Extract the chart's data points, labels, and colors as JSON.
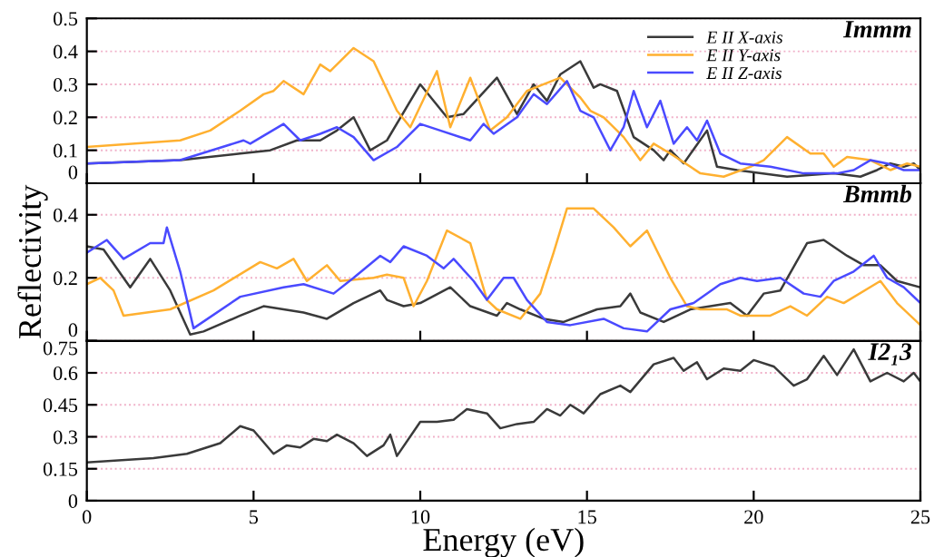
{
  "chart_data": [
    {
      "type": "line",
      "annotations": [
        "Immm"
      ],
      "xlim": [
        0,
        25
      ],
      "xticks": [
        0,
        5,
        10,
        15,
        20,
        25
      ],
      "ylim": [
        0,
        0.5
      ],
      "yticks": [
        0,
        0.1,
        0.2,
        0.3,
        0.4,
        0.5
      ],
      "tick_labels": "y",
      "grid": "y",
      "legend": "top right",
      "series": [
        {
          "name": "E II X-axis",
          "color": "#3a3a3a",
          "x": [
            0,
            2.8,
            4.6,
            5.5,
            6.3,
            7.0,
            7.5,
            8.0,
            8.5,
            9.0,
            10.0,
            10.8,
            11.3,
            12.3,
            12.9,
            13.4,
            13.8,
            14.2,
            14.8,
            15.2,
            15.4,
            15.9,
            16.4,
            17.0,
            17.3,
            17.5,
            17.9,
            18.6,
            18.9,
            19.5,
            21.0,
            22.4,
            23.2,
            23.7,
            24.1,
            24.5,
            24.8,
            25
          ],
          "values": [
            0.06,
            0.07,
            0.09,
            0.1,
            0.13,
            0.13,
            0.16,
            0.2,
            0.1,
            0.13,
            0.3,
            0.2,
            0.21,
            0.32,
            0.21,
            0.3,
            0.25,
            0.33,
            0.37,
            0.29,
            0.3,
            0.28,
            0.14,
            0.1,
            0.07,
            0.1,
            0.06,
            0.16,
            0.05,
            0.04,
            0.02,
            0.03,
            0.02,
            0.04,
            0.06,
            0.05,
            0.06,
            0.04
          ]
        },
        {
          "name": "E II Y-axis",
          "color": "#ffb030",
          "x": [
            0,
            2.8,
            3.7,
            4.6,
            5.3,
            5.6,
            5.9,
            6.5,
            7.0,
            7.3,
            8.0,
            8.6,
            9.3,
            9.7,
            10.5,
            10.9,
            11.5,
            12.1,
            12.6,
            13.2,
            13.7,
            14.2,
            14.8,
            15.1,
            15.5,
            16.1,
            16.6,
            17.0,
            17.5,
            18.4,
            19.1,
            19.9,
            20.3,
            21.0,
            21.7,
            22.1,
            22.4,
            22.8,
            23.5,
            24.1,
            24.6,
            25
          ],
          "values": [
            0.11,
            0.13,
            0.16,
            0.22,
            0.27,
            0.28,
            0.31,
            0.27,
            0.36,
            0.34,
            0.41,
            0.37,
            0.22,
            0.17,
            0.34,
            0.17,
            0.32,
            0.16,
            0.2,
            0.28,
            0.3,
            0.32,
            0.26,
            0.22,
            0.2,
            0.14,
            0.07,
            0.12,
            0.09,
            0.03,
            0.02,
            0.05,
            0.07,
            0.14,
            0.09,
            0.09,
            0.05,
            0.08,
            0.07,
            0.04,
            0.06,
            0.05
          ]
        },
        {
          "name": "E II Z-axis",
          "color": "#4a4aff",
          "x": [
            0,
            2.8,
            4.7,
            4.9,
            5.9,
            6.4,
            7.0,
            7.5,
            8.0,
            8.6,
            9.3,
            10.0,
            10.6,
            11.5,
            11.9,
            12.2,
            12.9,
            13.4,
            13.8,
            14.4,
            14.8,
            15.2,
            15.7,
            16.1,
            16.4,
            16.8,
            17.2,
            17.6,
            18.0,
            18.3,
            18.6,
            19.0,
            19.6,
            20.5,
            21.5,
            22.5,
            23.0,
            23.5,
            24.0,
            24.5,
            25
          ],
          "values": [
            0.06,
            0.07,
            0.13,
            0.12,
            0.18,
            0.13,
            0.15,
            0.17,
            0.14,
            0.07,
            0.11,
            0.18,
            0.16,
            0.13,
            0.18,
            0.15,
            0.2,
            0.27,
            0.24,
            0.31,
            0.22,
            0.2,
            0.1,
            0.17,
            0.28,
            0.17,
            0.25,
            0.12,
            0.17,
            0.13,
            0.19,
            0.09,
            0.06,
            0.05,
            0.03,
            0.03,
            0.04,
            0.07,
            0.06,
            0.04,
            0.04
          ]
        }
      ]
    },
    {
      "type": "line",
      "annotations": [
        "Bmmb"
      ],
      "ylabel": "Reflectivity",
      "xlim": [
        0,
        25
      ],
      "xticks": [
        0,
        5,
        10,
        15,
        20,
        25
      ],
      "ylim": [
        0,
        0.5
      ],
      "yticks": [
        0,
        0.2,
        0.4
      ],
      "tick_labels": "y",
      "grid": "y",
      "series": [
        {
          "color": "#3a3a3a",
          "x": [
            0,
            0.5,
            1.3,
            1.9,
            2.5,
            3.1,
            3.5,
            4.6,
            5.3,
            6.5,
            7.2,
            8.0,
            8.8,
            9.0,
            9.5,
            10.0,
            10.9,
            11.5,
            12.3,
            12.6,
            13.0,
            13.7,
            14.3,
            15.3,
            16.0,
            16.3,
            16.6,
            17.3,
            18.1,
            19.3,
            19.8,
            20.3,
            20.8,
            21.6,
            22.1,
            22.8,
            23.3,
            23.8,
            24.3,
            25
          ],
          "values": [
            0.3,
            0.29,
            0.17,
            0.26,
            0.16,
            0.02,
            0.03,
            0.08,
            0.11,
            0.09,
            0.07,
            0.12,
            0.16,
            0.13,
            0.11,
            0.12,
            0.17,
            0.11,
            0.08,
            0.12,
            0.1,
            0.07,
            0.06,
            0.1,
            0.11,
            0.15,
            0.09,
            0.06,
            0.1,
            0.12,
            0.08,
            0.15,
            0.16,
            0.31,
            0.32,
            0.27,
            0.24,
            0.24,
            0.19,
            0.17
          ]
        },
        {
          "color": "#ffb030",
          "x": [
            0,
            0.4,
            0.8,
            1.1,
            2.5,
            3.8,
            5.2,
            5.7,
            6.2,
            6.6,
            7.2,
            7.6,
            8.6,
            9.0,
            9.5,
            9.8,
            10.2,
            10.8,
            11.5,
            12.0,
            12.3,
            13.0,
            13.6,
            14.0,
            14.4,
            15.2,
            15.8,
            16.3,
            16.8,
            17.5,
            18.0,
            18.4,
            19.2,
            19.6,
            20.5,
            21.1,
            21.6,
            22.2,
            22.7,
            23.8,
            24.3,
            25
          ],
          "values": [
            0.18,
            0.2,
            0.16,
            0.08,
            0.1,
            0.16,
            0.25,
            0.23,
            0.26,
            0.19,
            0.24,
            0.19,
            0.2,
            0.21,
            0.2,
            0.11,
            0.19,
            0.35,
            0.31,
            0.13,
            0.1,
            0.07,
            0.15,
            0.28,
            0.42,
            0.42,
            0.36,
            0.3,
            0.35,
            0.2,
            0.11,
            0.1,
            0.1,
            0.08,
            0.08,
            0.11,
            0.08,
            0.14,
            0.12,
            0.19,
            0.12,
            0.05
          ]
        },
        {
          "color": "#4a4aff",
          "x": [
            0,
            0.6,
            1.1,
            1.9,
            2.3,
            2.4,
            2.8,
            3.2,
            4.6,
            5.9,
            6.5,
            7.4,
            8.0,
            8.8,
            9.1,
            9.5,
            10.2,
            10.7,
            11.0,
            11.6,
            12.0,
            12.5,
            12.8,
            13.2,
            13.8,
            14.5,
            15.5,
            16.1,
            16.8,
            17.5,
            18.2,
            19.0,
            19.6,
            20.1,
            20.8,
            21.5,
            22.0,
            22.4,
            23.0,
            23.6,
            24.0,
            24.5,
            25
          ],
          "values": [
            0.28,
            0.32,
            0.26,
            0.31,
            0.31,
            0.36,
            0.22,
            0.04,
            0.14,
            0.17,
            0.18,
            0.15,
            0.2,
            0.27,
            0.25,
            0.3,
            0.27,
            0.23,
            0.26,
            0.19,
            0.13,
            0.2,
            0.2,
            0.13,
            0.06,
            0.05,
            0.07,
            0.04,
            0.03,
            0.1,
            0.12,
            0.18,
            0.2,
            0.19,
            0.2,
            0.15,
            0.14,
            0.19,
            0.22,
            0.27,
            0.2,
            0.17,
            0.12
          ]
        }
      ]
    },
    {
      "type": "line",
      "annotations": [
        "I2₁3"
      ],
      "xlabel": "Energy (eV)",
      "xlim": [
        0,
        25
      ],
      "xticks": [
        0,
        5,
        10,
        15,
        20,
        25
      ],
      "ylim": [
        0,
        0.75
      ],
      "yticks": [
        0,
        0.15,
        0.3,
        0.45,
        0.6,
        0.75
      ],
      "grid": "y",
      "series": [
        {
          "color": "#3a3a3a",
          "x": [
            0,
            2,
            3,
            4,
            4.6,
            5.0,
            5.6,
            6.0,
            6.4,
            6.8,
            7.2,
            7.5,
            8.0,
            8.4,
            8.9,
            9.1,
            9.3,
            10.0,
            10.5,
            11.0,
            11.4,
            12.0,
            12.4,
            12.9,
            13.4,
            13.8,
            14.2,
            14.5,
            14.9,
            15.4,
            16.0,
            16.3,
            17.0,
            17.6,
            17.9,
            18.3,
            18.6,
            19.1,
            19.6,
            20.0,
            20.6,
            21.2,
            21.6,
            22.1,
            22.5,
            23.0,
            23.5,
            24.0,
            24.5,
            24.8,
            25
          ],
          "values": [
            0.18,
            0.2,
            0.22,
            0.27,
            0.35,
            0.33,
            0.22,
            0.26,
            0.25,
            0.29,
            0.28,
            0.31,
            0.27,
            0.21,
            0.26,
            0.31,
            0.21,
            0.37,
            0.37,
            0.38,
            0.43,
            0.41,
            0.34,
            0.36,
            0.37,
            0.43,
            0.4,
            0.45,
            0.41,
            0.5,
            0.54,
            0.51,
            0.64,
            0.67,
            0.61,
            0.65,
            0.57,
            0.62,
            0.61,
            0.66,
            0.63,
            0.54,
            0.57,
            0.68,
            0.59,
            0.71,
            0.56,
            0.6,
            0.56,
            0.6,
            0.56
          ]
        }
      ]
    }
  ]
}
